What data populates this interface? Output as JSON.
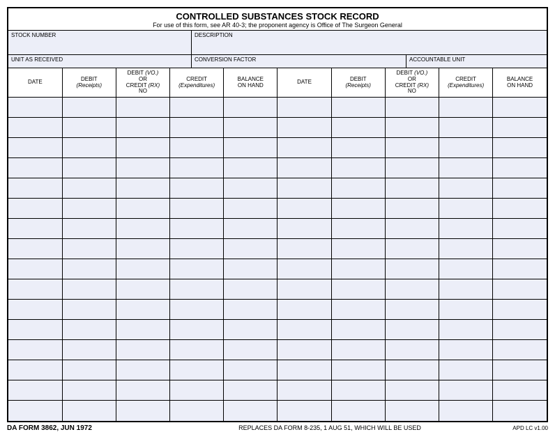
{
  "header": {
    "title": "CONTROLLED SUBSTANCES STOCK RECORD",
    "subtitle": "For use of this form, see AR 40-3; the proponent agency is Office of The Surgeon General"
  },
  "fields": {
    "stock_number_label": "STOCK NUMBER",
    "description_label": "DESCRIPTION",
    "unit_received_label": "UNIT AS RECEIVED",
    "conversion_factor_label": "CONVERSION FACTOR",
    "accountable_unit_label": "ACCOUNTABLE UNIT"
  },
  "columns": {
    "c0": "DATE",
    "c1_line1": "DEBIT",
    "c1_line2": "(Receipts)",
    "c2_line1": "DEBIT",
    "c2_line2": "(VO.)",
    "c2_line3": "OR",
    "c2_line4": "CREDIT",
    "c2_line5": "(RX)",
    "c2_line6": "NO",
    "c3_line1": "CREDIT",
    "c3_line2": "(Expenditures)",
    "c4_line1": "BALANCE",
    "c4_line2": "ON HAND",
    "c5": "DATE",
    "c6_line1": "DEBIT",
    "c6_line2": "(Receipts)",
    "c7_line1": "DEBIT",
    "c7_line2": "(VO.)",
    "c7_line3": "OR",
    "c7_line4": "CREDIT",
    "c7_line5": "(RX)",
    "c7_line6": "NO",
    "c8_line1": "CREDIT",
    "c8_line2": "(Expenditures)",
    "c9_line1": "BALANCE",
    "c9_line2": "ON HAND"
  },
  "row_count": 16,
  "col_count": 10,
  "footer": {
    "left": "DA FORM 3862, JUN 1972",
    "center": "REPLACES DA FORM 8-235, 1 AUG 51, WHICH WILL BE USED",
    "right": "APD LC v1.00"
  },
  "colors": {
    "cell_bg": "#eceef8",
    "border": "#000000",
    "page_bg": "#ffffff"
  }
}
